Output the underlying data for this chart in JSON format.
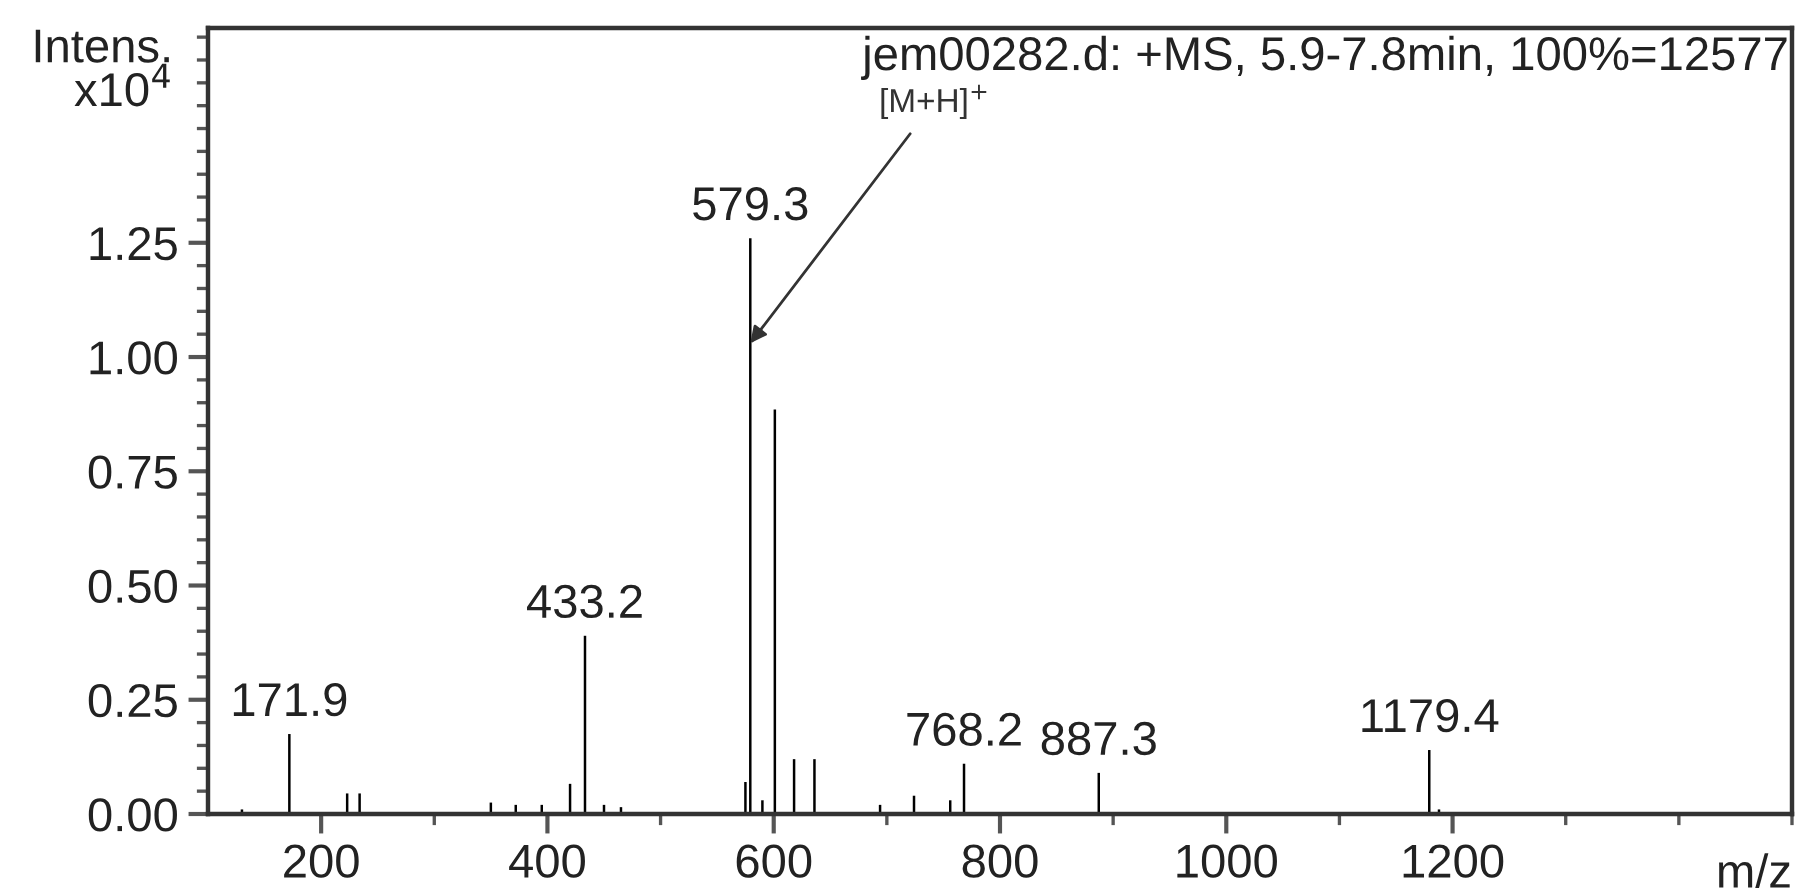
{
  "chart_data": {
    "type": "bar",
    "title": "jem00282.d: +MS, 5.9-7.8min, 100%=12577",
    "xlabel": "m/z",
    "ylabel": "Intens.\nx10$^{4}$",
    "x": [
      130,
      171.9,
      223,
      234,
      350,
      372,
      395,
      420,
      433.2,
      450,
      465,
      575,
      579.3,
      590,
      601,
      618,
      636,
      694,
      724,
      756,
      768.2,
      887.3,
      1179.4,
      1188
    ],
    "series": [
      {
        "color": "#000000",
        "values": [
          0.01,
          0.175,
          0.045,
          0.045,
          0.025,
          0.02,
          0.02,
          0.066,
          0.39,
          0.02,
          0.015,
          0.07,
          1.26,
          0.03,
          0.885,
          0.12,
          0.12,
          0.02,
          0.04,
          0.03,
          0.11,
          0.09,
          0.14,
          0.01
        ]
      }
    ],
    "annotations": [
      {
        "text": "171.9",
        "x": 171.9,
        "y": 0.175
      },
      {
        "text": "433.2",
        "x": 433.2,
        "y": 0.39
      },
      {
        "text": "579.3",
        "x": 579.3,
        "y": 1.26
      },
      {
        "text": "768.2",
        "x": 768.2,
        "y": 0.11
      },
      {
        "text": "887.3",
        "x": 887.3,
        "y": 0.09
      },
      {
        "text": "1179.4",
        "x": 1179.4,
        "y": 0.14
      },
      {
        "text": "[M+H]$^{+}$",
        "x": 579.3,
        "y": 1.03
      }
    ],
    "xlim": [
      100,
      1500
    ],
    "ylim": [
      0,
      1.72
    ],
    "xticks": [
      200,
      {
        "value": 300,
        "label": null
      },
      400,
      {
        "value": 500,
        "label": null
      },
      600,
      {
        "value": 700,
        "label": null
      },
      800,
      {
        "value": 900,
        "label": null
      },
      1000,
      {
        "value": 1100,
        "label": null
      },
      1200,
      {
        "value": 1300,
        "label": null
      },
      {
        "value": 1400,
        "label": null
      },
      {
        "value": 1500,
        "label": null
      }
    ],
    "yticks": [
      {
        "value": 0,
        "label": "0.00"
      },
      {
        "value": 0.05,
        "label": null
      },
      {
        "value": 0.1,
        "label": null
      },
      {
        "value": 0.15,
        "label": null
      },
      {
        "value": 0.2,
        "label": null
      },
      {
        "value": 0.25,
        "label": "0.25"
      },
      {
        "value": 0.3,
        "label": null
      },
      {
        "value": 0.35,
        "label": null
      },
      {
        "value": 0.4,
        "label": null
      },
      {
        "value": 0.45,
        "label": null
      },
      {
        "value": 0.5,
        "label": "0.50"
      },
      {
        "value": 0.55,
        "label": null
      },
      {
        "value": 0.6,
        "label": null
      },
      {
        "value": 0.65,
        "label": null
      },
      {
        "value": 0.7,
        "label": null
      },
      {
        "value": 0.75,
        "label": "0.75"
      },
      {
        "value": 0.8,
        "label": null
      },
      {
        "value": 0.85,
        "label": null
      },
      {
        "value": 0.9,
        "label": null
      },
      {
        "value": 0.95,
        "label": null
      },
      {
        "value": 1.0,
        "label": "1.00"
      },
      {
        "value": 1.05,
        "label": null
      },
      {
        "value": 1.1,
        "label": null
      },
      {
        "value": 1.15,
        "label": null
      },
      {
        "value": 1.2,
        "label": null
      },
      {
        "value": 1.25,
        "label": "1.25"
      },
      {
        "value": 1.3,
        "label": null
      },
      {
        "value": 1.35,
        "label": null
      },
      {
        "value": 1.4,
        "label": null
      },
      {
        "value": 1.45,
        "label": null
      },
      {
        "value": 1.5,
        "label": null
      },
      {
        "value": 1.55,
        "label": null
      },
      {
        "value": 1.6,
        "label": null
      },
      {
        "value": 1.65,
        "label": null
      },
      {
        "value": 1.7,
        "label": null
      }
    ],
    "grid": false,
    "legend": false
  }
}
